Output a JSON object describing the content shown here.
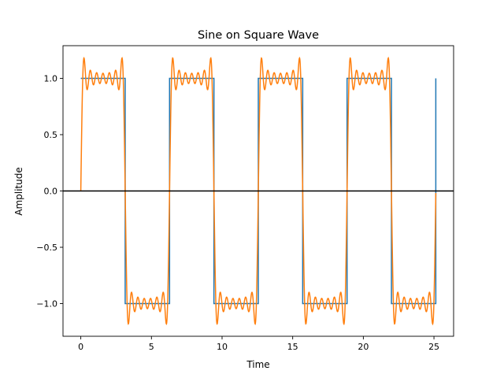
{
  "chart_data": {
    "type": "line",
    "title": "Sine on Square Wave",
    "xlabel": "Time",
    "ylabel": "Amplitude",
    "xlim": [
      -1.26,
      26.39
    ],
    "ylim": [
      -1.29,
      1.29
    ],
    "xticks": [
      0,
      5,
      10,
      15,
      20,
      25
    ],
    "xtick_labels": [
      "0",
      "5",
      "10",
      "15",
      "20",
      "25"
    ],
    "yticks": [
      -1.0,
      -0.5,
      0.0,
      0.5,
      1.0
    ],
    "ytick_labels": [
      "−1.0",
      "−0.5",
      "0.0",
      "0.5",
      "1.0"
    ],
    "grid": false,
    "legend": "none",
    "reference_line": {
      "y": 0,
      "color": "#000000"
    },
    "series": [
      {
        "kind": "square wave",
        "amplitude": 1,
        "period": 6.283,
        "x_range": [
          0,
          25.13
        ],
        "color": "#1f77b4"
      },
      {
        "kind": "square wave sum of odd sine harmonics (1, 3, 5, 7, 9, 11, 13)",
        "amplitude": 1,
        "period": 6.283,
        "x_range": [
          0,
          25.13
        ],
        "color": "#ff7f0e"
      }
    ]
  }
}
